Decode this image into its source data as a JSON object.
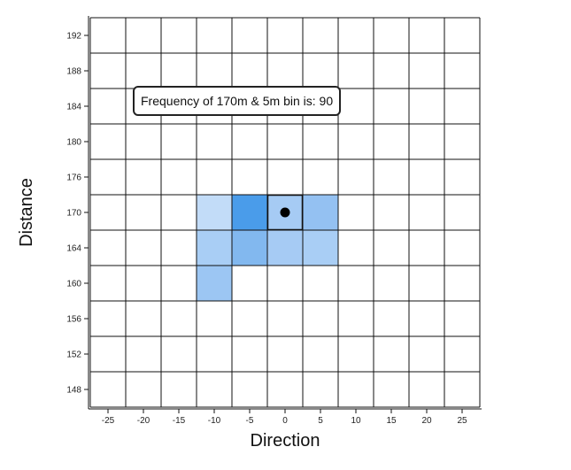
{
  "chart_data": {
    "type": "heatmap",
    "xlabel": "Direction",
    "ylabel": "Distance",
    "x_ticks": [
      -25,
      -20,
      -15,
      -10,
      -5,
      0,
      5,
      10,
      15,
      20,
      25
    ],
    "y_ticks": [
      192,
      188,
      184,
      180,
      176,
      170,
      164,
      160,
      156,
      152,
      148
    ],
    "xlim": [
      -27.5,
      27.5
    ],
    "ylim": [
      146,
      194
    ],
    "grid": true,
    "cells": [
      {
        "direction": -10,
        "distance": 170,
        "color": "#c2dcf8"
      },
      {
        "direction": -5,
        "distance": 170,
        "color": "#4a9cea"
      },
      {
        "direction": 0,
        "distance": 170,
        "color": "#a6cbf4"
      },
      {
        "direction": 5,
        "distance": 170,
        "color": "#94c1f2"
      },
      {
        "direction": -10,
        "distance": 164,
        "color": "#a9cef5"
      },
      {
        "direction": -5,
        "distance": 164,
        "color": "#82b8ef"
      },
      {
        "direction": 0,
        "distance": 164,
        "color": "#a6cbf4"
      },
      {
        "direction": 5,
        "distance": 164,
        "color": "#a9cef5"
      },
      {
        "direction": -10,
        "distance": 160,
        "color": "#9cc6f3"
      }
    ],
    "highlight": {
      "direction": 0,
      "distance": 170,
      "frequency": 90
    },
    "tooltip_text": "Frequency of 170m & 5m bin is: 90"
  }
}
